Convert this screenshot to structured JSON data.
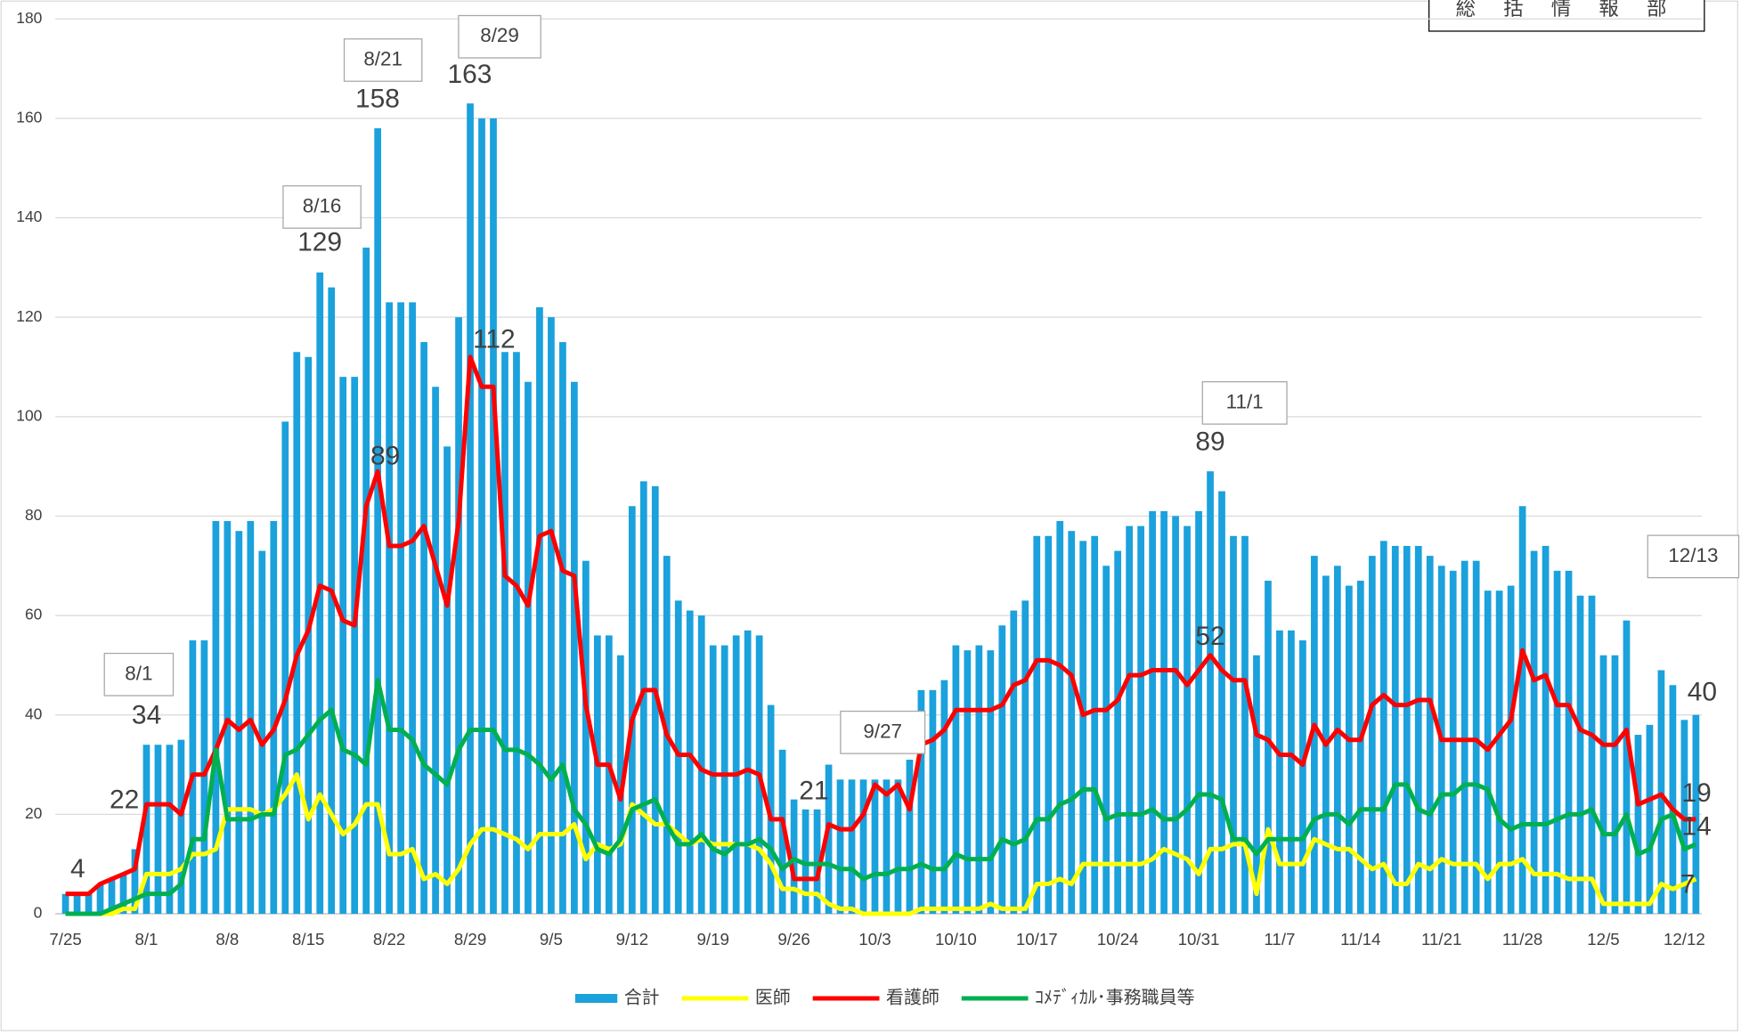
{
  "chart_data": {
    "type": "combo",
    "header_note": "総 括 情 報 部",
    "categories": [
      "7/25",
      null,
      null,
      null,
      null,
      null,
      null,
      "8/1",
      null,
      null,
      null,
      null,
      null,
      null,
      "8/8",
      null,
      null,
      null,
      null,
      null,
      null,
      "8/15",
      null,
      null,
      null,
      null,
      null,
      null,
      "8/22",
      null,
      null,
      null,
      null,
      null,
      null,
      "8/29",
      null,
      null,
      null,
      null,
      null,
      null,
      "9/5",
      null,
      null,
      null,
      null,
      null,
      null,
      "9/12",
      null,
      null,
      null,
      null,
      null,
      null,
      "9/19",
      null,
      null,
      null,
      null,
      null,
      null,
      "9/26",
      null,
      null,
      null,
      null,
      null,
      null,
      "10/3",
      null,
      null,
      null,
      null,
      null,
      null,
      "10/10",
      null,
      null,
      null,
      null,
      null,
      null,
      "10/17",
      null,
      null,
      null,
      null,
      null,
      null,
      "10/24",
      null,
      null,
      null,
      null,
      null,
      null,
      "10/31",
      null,
      null,
      null,
      null,
      null,
      null,
      "11/7",
      null,
      null,
      null,
      null,
      null,
      null,
      "11/14",
      null,
      null,
      null,
      null,
      null,
      null,
      "11/21",
      null,
      null,
      null,
      null,
      null,
      null,
      "11/28",
      null,
      null,
      null,
      null,
      null,
      null,
      "12/5",
      null,
      null,
      null,
      null,
      null,
      null,
      "12/12",
      null
    ],
    "series": [
      {
        "name": "合計",
        "type": "bar",
        "color": "#1ba1dc",
        "values": [
          4,
          4,
          4,
          6,
          7,
          8,
          13,
          34,
          34,
          34,
          35,
          55,
          55,
          79,
          79,
          77,
          79,
          73,
          79,
          99,
          113,
          112,
          129,
          126,
          108,
          108,
          134,
          158,
          123,
          123,
          123,
          115,
          106,
          94,
          120,
          163,
          160,
          160,
          113,
          113,
          107,
          122,
          120,
          115,
          107,
          71,
          56,
          56,
          52,
          82,
          87,
          86,
          72,
          63,
          61,
          60,
          54,
          54,
          56,
          57,
          56,
          42,
          33,
          23,
          21,
          21,
          30,
          27,
          27,
          27,
          27,
          27,
          27,
          31,
          45,
          45,
          47,
          54,
          53,
          54,
          53,
          58,
          61,
          63,
          76,
          76,
          79,
          77,
          75,
          76,
          70,
          73,
          78,
          78,
          81,
          81,
          80,
          78,
          81,
          89,
          85,
          76,
          76,
          52,
          67,
          57,
          57,
          55,
          72,
          68,
          70,
          66,
          67,
          72,
          75,
          74,
          74,
          74,
          72,
          70,
          69,
          71,
          71,
          65,
          65,
          66,
          82,
          73,
          74,
          69,
          69,
          64,
          64,
          52,
          52,
          59,
          36,
          38,
          49,
          46,
          39,
          40
        ]
      },
      {
        "name": "医師",
        "type": "line",
        "color": "#ffff00",
        "values": [
          0,
          0,
          0,
          0,
          0,
          1,
          1,
          8,
          8,
          8,
          9,
          12,
          12,
          13,
          21,
          21,
          21,
          20,
          21,
          24,
          28,
          19,
          24,
          20,
          16,
          18,
          22,
          22,
          12,
          12,
          13,
          7,
          8,
          6,
          9,
          14,
          17,
          17,
          16,
          15,
          13,
          16,
          16,
          16,
          18,
          11,
          14,
          13,
          14,
          22,
          20,
          18,
          18,
          16,
          14,
          15,
          14,
          14,
          14,
          14,
          13,
          10,
          5,
          5,
          4,
          4,
          2,
          1,
          1,
          0,
          0,
          0,
          0,
          0,
          1,
          1,
          1,
          1,
          1,
          1,
          2,
          1,
          1,
          1,
          6,
          6,
          7,
          6,
          10,
          10,
          10,
          10,
          10,
          10,
          11,
          13,
          12,
          11,
          8,
          13,
          13,
          14,
          14,
          4,
          17,
          10,
          10,
          10,
          15,
          14,
          13,
          13,
          11,
          9,
          10,
          6,
          6,
          10,
          9,
          11,
          10,
          10,
          10,
          7,
          10,
          10,
          11,
          8,
          8,
          8,
          7,
          7,
          7,
          2,
          2,
          2,
          2,
          2,
          6,
          5,
          6,
          7
        ]
      },
      {
        "name": "看護師",
        "type": "line",
        "color": "#ff0000",
        "values": [
          4,
          4,
          4,
          6,
          7,
          8,
          9,
          22,
          22,
          22,
          20,
          28,
          28,
          33,
          39,
          37,
          39,
          34,
          37,
          43,
          52,
          57,
          66,
          65,
          59,
          58,
          82,
          89,
          74,
          74,
          75,
          78,
          70,
          62,
          79,
          112,
          106,
          106,
          68,
          66,
          62,
          76,
          77,
          69,
          68,
          42,
          30,
          30,
          23,
          39,
          45,
          45,
          36,
          32,
          32,
          29,
          28,
          28,
          28,
          29,
          28,
          19,
          19,
          7,
          7,
          7,
          18,
          17,
          17,
          20,
          26,
          24,
          26,
          21,
          34,
          35,
          37,
          41,
          41,
          41,
          41,
          42,
          46,
          47,
          51,
          51,
          50,
          48,
          40,
          41,
          41,
          43,
          48,
          48,
          49,
          49,
          49,
          46,
          49,
          52,
          49,
          47,
          47,
          36,
          35,
          32,
          32,
          30,
          38,
          34,
          37,
          35,
          35,
          42,
          44,
          42,
          42,
          43,
          43,
          35,
          35,
          35,
          35,
          33,
          36,
          39,
          53,
          47,
          48,
          42,
          42,
          37,
          36,
          34,
          34,
          37,
          22,
          23,
          24,
          21,
          19,
          19
        ]
      },
      {
        "name": "ｺﾒﾃﾞｨｶﾙ･事務職員等",
        "type": "line",
        "color": "#00b050",
        "values": [
          0,
          0,
          0,
          0,
          1,
          2,
          3,
          4,
          4,
          4,
          6,
          15,
          15,
          33,
          19,
          19,
          19,
          20,
          20,
          32,
          33,
          36,
          39,
          41,
          33,
          32,
          30,
          47,
          37,
          37,
          35,
          30,
          28,
          26,
          33,
          37,
          37,
          37,
          33,
          33,
          32,
          30,
          27,
          30,
          21,
          18,
          13,
          12,
          15,
          21,
          22,
          23,
          18,
          14,
          14,
          16,
          13,
          12,
          14,
          14,
          15,
          13,
          9,
          11,
          10,
          10,
          10,
          9,
          9,
          7,
          8,
          8,
          9,
          9,
          10,
          9,
          9,
          12,
          11,
          11,
          11,
          15,
          14,
          15,
          19,
          19,
          22,
          23,
          25,
          25,
          19,
          20,
          20,
          20,
          21,
          19,
          19,
          21,
          24,
          24,
          23,
          15,
          15,
          12,
          15,
          15,
          15,
          15,
          19,
          20,
          20,
          18,
          21,
          21,
          21,
          26,
          26,
          21,
          20,
          24,
          24,
          26,
          26,
          25,
          19,
          17,
          18,
          18,
          18,
          19,
          20,
          20,
          21,
          16,
          16,
          20,
          12,
          13,
          19,
          20,
          13,
          14
        ]
      }
    ],
    "annotations": [
      "8/1",
      "8/16",
      "8/21",
      "8/29",
      "9/27",
      "11/1",
      "12/13"
    ],
    "ylim": [
      0,
      180
    ],
    "yticks": [
      0,
      20,
      40,
      60,
      80,
      100,
      120,
      140,
      160,
      180
    ],
    "grid": true,
    "legend": "bottom"
  }
}
